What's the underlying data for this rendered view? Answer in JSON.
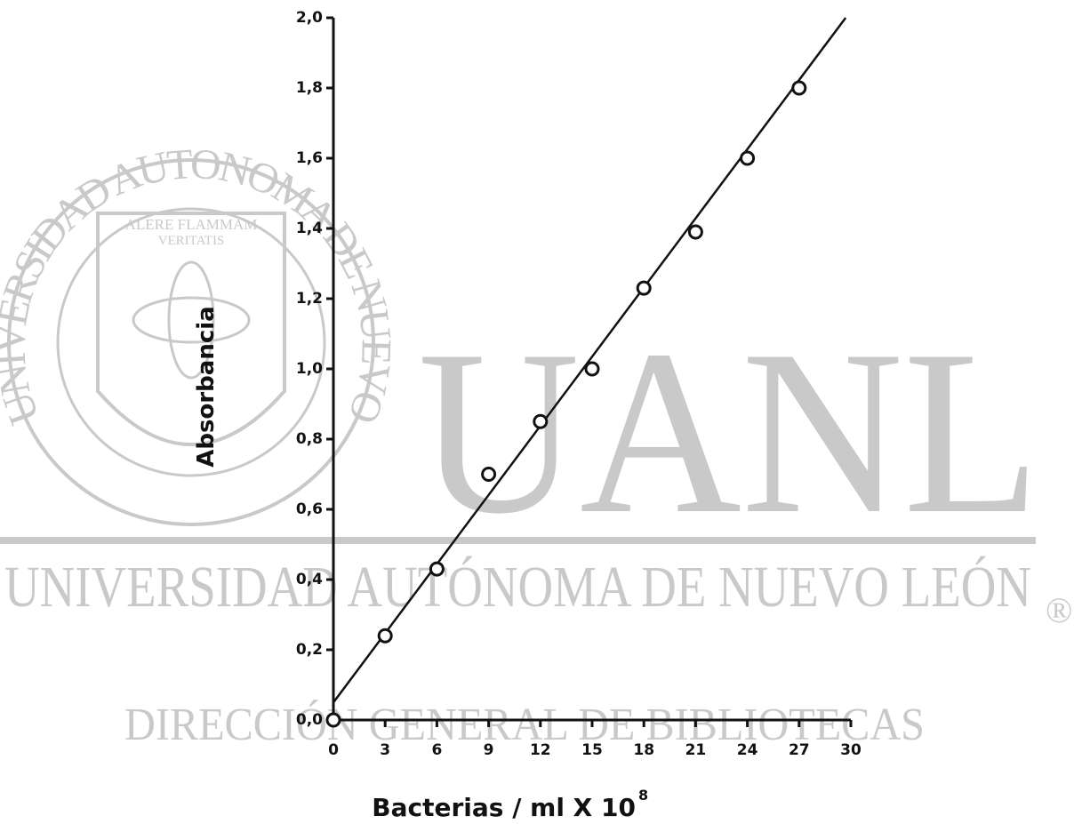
{
  "watermark": {
    "seal_text": "UNIVERSIDAD AUTONOMA DE NUEVO LEON",
    "motto_1": "ALERE FLAMMAM",
    "motto_2": "VERITATIS",
    "big": "UANL",
    "line_1": "UNIVERSIDAD AUTÓNOMA DE NUEVO LEÓN",
    "line_2": "DIRECCIÓN GENERAL DE BIBLIOTECAS",
    "mark": "®"
  },
  "chart_data": {
    "type": "scatter",
    "xlabel": "Bacterias / ml X 10",
    "xlabel_exponent": "8",
    "ylabel": "Absorbancia",
    "x": [
      0,
      3,
      6,
      9,
      12,
      15,
      18,
      21,
      24,
      27
    ],
    "series": [
      {
        "color": "#111111",
        "values": [
          0,
          0.24,
          0.43,
          0.7,
          0.85,
          1.0,
          1.23,
          1.39,
          1.6,
          1.8
        ]
      }
    ],
    "fit": {
      "color": "#111111",
      "x": [
        0,
        29.7
      ],
      "values": [
        0.05,
        2.0
      ]
    },
    "xlim": [
      0,
      30
    ],
    "xticks": [
      0,
      3,
      6,
      9,
      12,
      15,
      18,
      21,
      24,
      27,
      30
    ],
    "ylim": [
      0,
      2.0
    ],
    "yticks": [
      {
        "value": 0,
        "label": "0,0"
      },
      {
        "value": 0.2,
        "label": "0,2"
      },
      {
        "value": 0.4,
        "label": "0,4"
      },
      {
        "value": 0.6,
        "label": "0,6"
      },
      {
        "value": 0.8,
        "label": "0,8"
      },
      {
        "value": 1.0,
        "label": "1,0"
      },
      {
        "value": 1.2,
        "label": "1,2"
      },
      {
        "value": 1.4,
        "label": "1,4"
      },
      {
        "value": 1.6,
        "label": "1,6"
      },
      {
        "value": 1.8,
        "label": "1,8"
      },
      {
        "value": 2.0,
        "label": "2,0"
      }
    ],
    "grid": false
  }
}
